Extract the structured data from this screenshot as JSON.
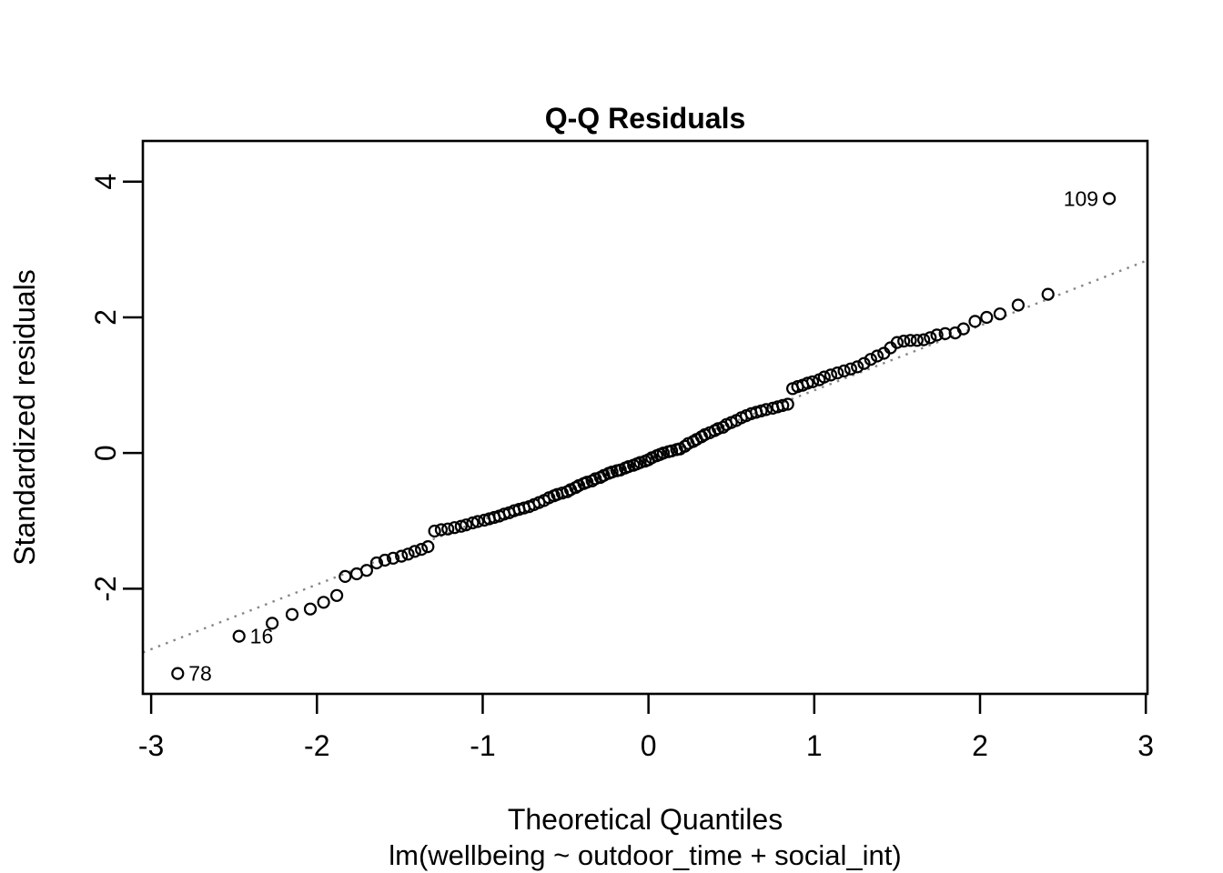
{
  "title": "Q-Q Residuals",
  "x_axis": {
    "label": "Theoretical Quantiles"
  },
  "y_axis": {
    "label": "Standardized residuals"
  },
  "model_label": "lm(wellbeing ~ outdoor_time + social_int)",
  "chart_data": {
    "type": "scatter",
    "title": "Q-Q Residuals",
    "xlabel": "Theoretical Quantiles",
    "ylabel": "Standardized residuals",
    "annotation": "lm(wellbeing ~ outdoor_time + social_int)",
    "xlim": [
      -3.05,
      3.01
    ],
    "ylim": [
      -3.55,
      4.6
    ],
    "x_ticks": [
      -3,
      -2,
      -1,
      0,
      1,
      2,
      3
    ],
    "y_ticks": [
      -2,
      0,
      2,
      4
    ],
    "grid": false,
    "legend": null,
    "marker": "open-circle",
    "marker_color": "#000000",
    "reference_line": {
      "style": "dotted",
      "slope": 0.954,
      "intercept": -0.03,
      "color": "#878787"
    },
    "labeled_points": [
      {
        "label": "78",
        "x": -2.84,
        "y": -3.25,
        "side": "right"
      },
      {
        "label": "16",
        "x": -2.47,
        "y": -2.7,
        "side": "right"
      },
      {
        "label": "109",
        "x": 2.78,
        "y": 3.75,
        "side": "left"
      }
    ],
    "points": [
      [
        -2.84,
        -3.25
      ],
      [
        -2.47,
        -2.7
      ],
      [
        -2.27,
        -2.51
      ],
      [
        -2.15,
        -2.38
      ],
      [
        -2.04,
        -2.3
      ],
      [
        -1.96,
        -2.2
      ],
      [
        -1.88,
        -2.1
      ],
      [
        -1.83,
        -1.82
      ],
      [
        -1.76,
        -1.78
      ],
      [
        -1.7,
        -1.73
      ],
      [
        -1.64,
        -1.62
      ],
      [
        -1.59,
        -1.58
      ],
      [
        -1.54,
        -1.55
      ],
      [
        -1.49,
        -1.52
      ],
      [
        -1.45,
        -1.49
      ],
      [
        -1.41,
        -1.45
      ],
      [
        -1.37,
        -1.42
      ],
      [
        -1.33,
        -1.38
      ],
      [
        -1.29,
        -1.15
      ],
      [
        -1.25,
        -1.13
      ],
      [
        -1.21,
        -1.12
      ],
      [
        -1.17,
        -1.1
      ],
      [
        -1.13,
        -1.08
      ],
      [
        -1.1,
        -1.06
      ],
      [
        -1.06,
        -1.03
      ],
      [
        -1.03,
        -1.01
      ],
      [
        -0.99,
        -0.99
      ],
      [
        -0.96,
        -0.97
      ],
      [
        -0.93,
        -0.95
      ],
      [
        -0.9,
        -0.93
      ],
      [
        -0.87,
        -0.9
      ],
      [
        -0.84,
        -0.88
      ],
      [
        -0.81,
        -0.85
      ],
      [
        -0.78,
        -0.83
      ],
      [
        -0.75,
        -0.81
      ],
      [
        -0.72,
        -0.79
      ],
      [
        -0.69,
        -0.76
      ],
      [
        -0.66,
        -0.73
      ],
      [
        -0.63,
        -0.7
      ],
      [
        -0.6,
        -0.66
      ],
      [
        -0.57,
        -0.63
      ],
      [
        -0.55,
        -0.61
      ],
      [
        -0.52,
        -0.59
      ],
      [
        -0.49,
        -0.57
      ],
      [
        -0.47,
        -0.54
      ],
      [
        -0.44,
        -0.51
      ],
      [
        -0.42,
        -0.48
      ],
      [
        -0.39,
        -0.45
      ],
      [
        -0.37,
        -0.43
      ],
      [
        -0.34,
        -0.41
      ],
      [
        -0.32,
        -0.38
      ],
      [
        -0.29,
        -0.36
      ],
      [
        -0.27,
        -0.33
      ],
      [
        -0.24,
        -0.3
      ],
      [
        -0.22,
        -0.28
      ],
      [
        -0.19,
        -0.26
      ],
      [
        -0.17,
        -0.25
      ],
      [
        -0.14,
        -0.22
      ],
      [
        -0.12,
        -0.2
      ],
      [
        -0.09,
        -0.18
      ],
      [
        -0.07,
        -0.16
      ],
      [
        -0.05,
        -0.14
      ],
      [
        -0.02,
        -0.12
      ],
      [
        0.0,
        -0.1
      ],
      [
        0.02,
        -0.07
      ],
      [
        0.05,
        -0.04
      ],
      [
        0.07,
        -0.02
      ],
      [
        0.09,
        0.0
      ],
      [
        0.12,
        0.02
      ],
      [
        0.14,
        0.03
      ],
      [
        0.17,
        0.05
      ],
      [
        0.19,
        0.06
      ],
      [
        0.22,
        0.1
      ],
      [
        0.24,
        0.14
      ],
      [
        0.27,
        0.17
      ],
      [
        0.29,
        0.2
      ],
      [
        0.32,
        0.24
      ],
      [
        0.34,
        0.27
      ],
      [
        0.37,
        0.3
      ],
      [
        0.4,
        0.33
      ],
      [
        0.42,
        0.36
      ],
      [
        0.45,
        0.38
      ],
      [
        0.47,
        0.42
      ],
      [
        0.5,
        0.45
      ],
      [
        0.53,
        0.48
      ],
      [
        0.56,
        0.52
      ],
      [
        0.59,
        0.55
      ],
      [
        0.62,
        0.58
      ],
      [
        0.65,
        0.6
      ],
      [
        0.68,
        0.62
      ],
      [
        0.71,
        0.64
      ],
      [
        0.75,
        0.66
      ],
      [
        0.78,
        0.68
      ],
      [
        0.81,
        0.7
      ],
      [
        0.84,
        0.72
      ],
      [
        0.87,
        0.95
      ],
      [
        0.9,
        0.98
      ],
      [
        0.93,
        1.0
      ],
      [
        0.96,
        1.03
      ],
      [
        0.99,
        1.05
      ],
      [
        1.03,
        1.08
      ],
      [
        1.06,
        1.12
      ],
      [
        1.1,
        1.15
      ],
      [
        1.14,
        1.18
      ],
      [
        1.18,
        1.21
      ],
      [
        1.22,
        1.24
      ],
      [
        1.26,
        1.27
      ],
      [
        1.3,
        1.32
      ],
      [
        1.34,
        1.38
      ],
      [
        1.38,
        1.43
      ],
      [
        1.42,
        1.47
      ],
      [
        1.46,
        1.55
      ],
      [
        1.5,
        1.63
      ],
      [
        1.54,
        1.65
      ],
      [
        1.58,
        1.66
      ],
      [
        1.62,
        1.66
      ],
      [
        1.66,
        1.67
      ],
      [
        1.7,
        1.7
      ],
      [
        1.74,
        1.74
      ],
      [
        1.79,
        1.76
      ],
      [
        1.85,
        1.77
      ],
      [
        1.9,
        1.83
      ],
      [
        1.97,
        1.94
      ],
      [
        2.04,
        2.0
      ],
      [
        2.12,
        2.05
      ],
      [
        2.23,
        2.18
      ],
      [
        2.41,
        2.34
      ],
      [
        2.78,
        3.75
      ]
    ]
  }
}
